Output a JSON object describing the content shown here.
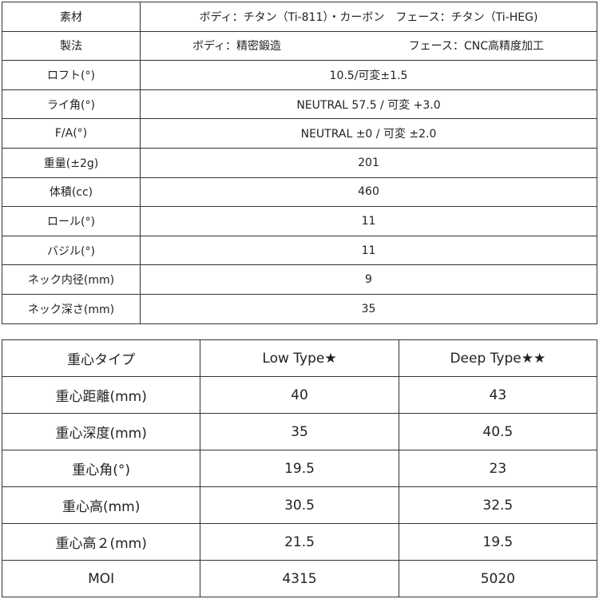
{
  "spec_table": {
    "material": {
      "label": "素材",
      "value": "ボディ：チタン（Ti-811）・カーボン　フェース：チタン（Ti-HEG)"
    },
    "manufacturing": {
      "label": "製法",
      "body": "ボディ：精密鍛造",
      "face": "フェース：CNC高精度加工"
    },
    "rows": [
      {
        "label": "ロフト(°)",
        "value": "10.5/可変±1.5"
      },
      {
        "label": "ライ角(°)",
        "value": "NEUTRAL 57.5 / 可変 +3.0"
      },
      {
        "label": "F/A(°)",
        "value": "NEUTRAL ±0 / 可変 ±2.0"
      },
      {
        "label": "重量(±2g)",
        "value": "201"
      },
      {
        "label": "体積(cc)",
        "value": "460"
      },
      {
        "label": "ロール(°)",
        "value": "11"
      },
      {
        "label": "バジル(°)",
        "value": "11"
      },
      {
        "label": "ネック内径(mm)",
        "value": "9"
      },
      {
        "label": "ネック深さ(mm)",
        "value": "35"
      }
    ]
  },
  "cg_table": {
    "header": [
      "重心タイプ",
      "Low Type★",
      "Deep Type★★"
    ],
    "rows": [
      [
        "重心距離(mm)",
        "40",
        "43"
      ],
      [
        "重心深度(mm)",
        "35",
        "40.5"
      ],
      [
        "重心角(°)",
        "19.5",
        "23"
      ],
      [
        "重心高(mm)",
        "30.5",
        "32.5"
      ],
      [
        "重心高２(mm)",
        "21.5",
        "19.5"
      ],
      [
        "MOI",
        "4315",
        "5020"
      ]
    ]
  }
}
